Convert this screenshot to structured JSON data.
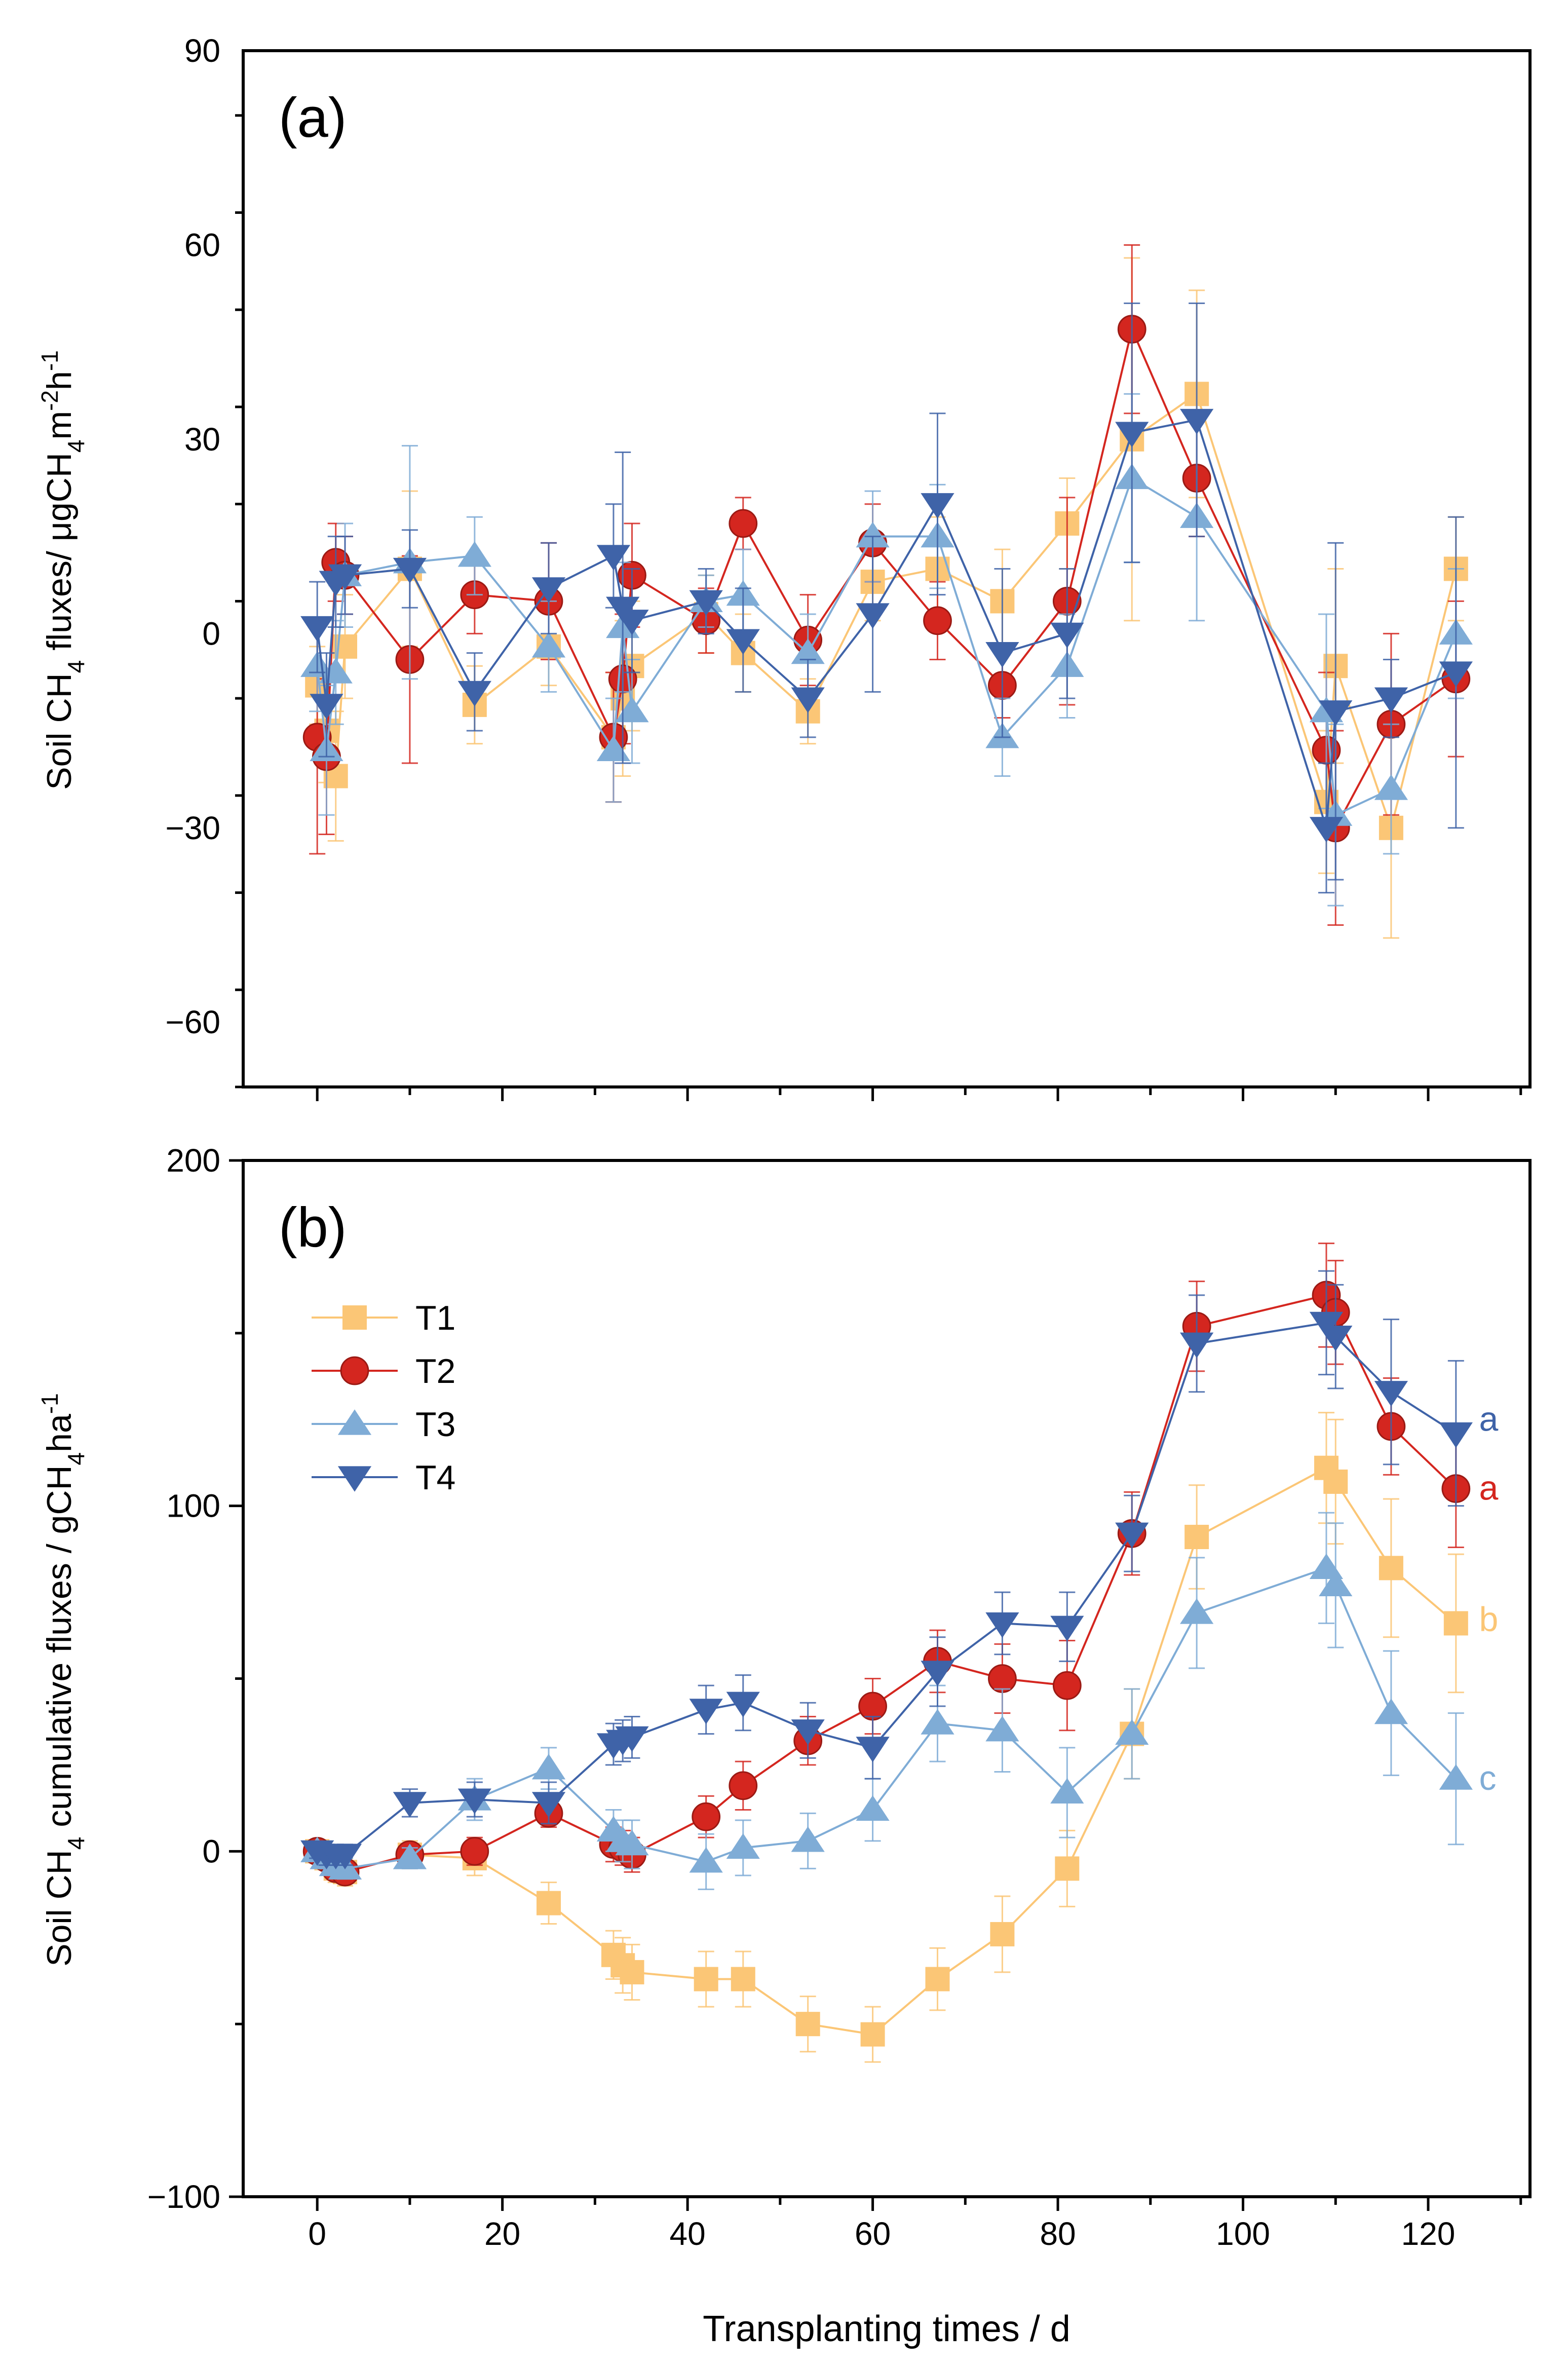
{
  "x_axis": {
    "label": "Transplanting times / d",
    "ticks": [
      "0",
      "20",
      "40",
      "60",
      "80",
      "100",
      "120"
    ]
  },
  "legend": [
    {
      "name": "T1",
      "color": "#FBC676",
      "marker": "square"
    },
    {
      "name": "T2",
      "color": "#D4261F",
      "marker": "circle"
    },
    {
      "name": "T3",
      "color": "#7FACD6",
      "marker": "triangle-up"
    },
    {
      "name": "T4",
      "color": "#3F63A8",
      "marker": "triangle-down"
    }
  ],
  "chart_data": [
    {
      "type": "line",
      "panel_label": "(a)",
      "title": "",
      "xlabel": "Transplanting times / d",
      "ylabel": {
        "main": "Soil CH",
        "sub1": "4",
        "mid": " fluxes/ μgCH",
        "sub2": "4",
        "m": "m",
        "sup1": "-2",
        "h": "h",
        "sup2": "-1"
      },
      "xlim": [
        -8,
        131
      ],
      "ylim": [
        -70,
        90
      ],
      "yticks": [
        -60,
        -30,
        0,
        30,
        60,
        90
      ],
      "ytick_labels": [
        "−60",
        "−30",
        "0",
        "30",
        "60",
        "90"
      ],
      "x": [
        0,
        1,
        2,
        3,
        10,
        17,
        25,
        32,
        33,
        34,
        42,
        46,
        53,
        60,
        67,
        74,
        81,
        88,
        95,
        109,
        110,
        116,
        123
      ],
      "series": [
        {
          "name": "T1",
          "values": [
            -8,
            -15,
            -22,
            -2,
            10,
            -11,
            -2,
            -16,
            -10,
            -5,
            3,
            -3,
            -12,
            8,
            10,
            5,
            17,
            30,
            37,
            -26,
            -5,
            -30,
            10
          ],
          "errors": [
            6,
            8,
            10,
            8,
            12,
            6,
            6,
            10,
            12,
            10,
            6,
            6,
            5,
            6,
            8,
            8,
            7,
            28,
            16,
            11,
            15,
            17,
            8
          ]
        },
        {
          "name": "T2",
          "values": [
            -16,
            -19,
            11,
            9,
            -4,
            6,
            5,
            -16,
            -7,
            9,
            2,
            17,
            -1,
            14,
            2,
            -8,
            5,
            47,
            24,
            -18,
            -30,
            -14,
            -7
          ],
          "errors": [
            18,
            12,
            6,
            6,
            16,
            6,
            9,
            10,
            10,
            8,
            5,
            4,
            7,
            6,
            6,
            5,
            16,
            13,
            9,
            12,
            15,
            14,
            12
          ]
        },
        {
          "name": "T3",
          "values": [
            -5,
            -18,
            -6,
            9,
            11,
            12,
            -2,
            -18,
            1,
            -12,
            5,
            6,
            -3,
            15,
            15,
            -16,
            -5,
            24,
            18,
            -12,
            -28,
            -24,
            0
          ],
          "errors": [
            7,
            10,
            8,
            8,
            18,
            6,
            7,
            8,
            10,
            8,
            4,
            7,
            6,
            7,
            8,
            6,
            8,
            13,
            16,
            15,
            14,
            10,
            10
          ]
        },
        {
          "name": "T4",
          "values": [
            1,
            -11,
            8,
            9,
            10,
            -9,
            7,
            12,
            4,
            2,
            5,
            -1,
            -10,
            3,
            20,
            -3,
            0,
            31,
            33,
            -30,
            -12,
            -10,
            -6
          ],
          "errors": [
            7,
            8,
            7,
            6,
            6,
            6,
            7,
            8,
            24,
            8,
            5,
            8,
            6,
            12,
            14,
            13,
            10,
            20,
            18,
            10,
            26,
            6,
            24
          ]
        }
      ]
    },
    {
      "type": "line",
      "panel_label": "(b)",
      "title": "",
      "xlabel": "Transplanting times / d",
      "ylabel": {
        "main": "Soil CH",
        "sub1": "4",
        "mid": " cumulative fluxes / gCH",
        "sub2": "4",
        "h": "ha",
        "sup": "-1"
      },
      "xlim": [
        -8,
        131
      ],
      "ylim": [
        -100,
        200
      ],
      "yticks": [
        -100,
        0,
        100,
        200
      ],
      "ytick_labels": [
        "−100",
        "0",
        "100",
        "200"
      ],
      "x": [
        0,
        1,
        2,
        3,
        10,
        17,
        25,
        32,
        33,
        34,
        42,
        46,
        53,
        60,
        67,
        74,
        81,
        88,
        95,
        109,
        110,
        116,
        123
      ],
      "series": [
        {
          "name": "T1",
          "values": [
            0,
            -2,
            -5,
            -6,
            -1,
            -2,
            -15,
            -30,
            -33,
            -35,
            -37,
            -37,
            -50,
            -53,
            -37,
            -24,
            -5,
            34,
            91,
            111,
            107,
            82,
            66
          ],
          "errors": [
            2,
            3,
            4,
            4,
            4,
            5,
            6,
            7,
            8,
            8,
            8,
            8,
            8,
            8,
            9,
            11,
            11,
            13,
            15,
            16,
            18,
            20,
            20
          ]
        },
        {
          "name": "T2",
          "values": [
            0,
            -2,
            -5,
            -6,
            -1,
            0,
            11,
            2,
            1,
            -1,
            10,
            19,
            32,
            42,
            55,
            50,
            48,
            92,
            152,
            161,
            156,
            123,
            105
          ],
          "errors": [
            2,
            3,
            3,
            3,
            3,
            4,
            4,
            5,
            5,
            5,
            6,
            7,
            7,
            8,
            9,
            10,
            13,
            12,
            13,
            15,
            15,
            14,
            17
          ]
        },
        {
          "name": "T3",
          "values": [
            0,
            -2,
            -4,
            -5,
            -2,
            15,
            24,
            6,
            3,
            2,
            -3,
            1,
            3,
            12,
            37,
            35,
            17,
            34,
            69,
            82,
            77,
            40,
            21
          ],
          "errors": [
            2,
            3,
            3,
            3,
            3,
            6,
            6,
            6,
            6,
            7,
            8,
            8,
            8,
            9,
            11,
            12,
            13,
            13,
            16,
            16,
            18,
            18,
            19
          ]
        },
        {
          "name": "T4",
          "values": [
            0,
            -1,
            -1,
            -1,
            14,
            15,
            14,
            31,
            32,
            33,
            41,
            43,
            35,
            30,
            52,
            66,
            65,
            92,
            147,
            153,
            149,
            133,
            121
          ],
          "errors": [
            2,
            3,
            3,
            3,
            4,
            5,
            6,
            6,
            6,
            6,
            7,
            8,
            8,
            9,
            10,
            9,
            10,
            11,
            14,
            15,
            15,
            21,
            21
          ]
        }
      ],
      "significance_letters": [
        {
          "series": "T4",
          "letter": "a",
          "y": 125
        },
        {
          "series": "T2",
          "letter": "a",
          "y": 105
        },
        {
          "series": "T1",
          "letter": "b",
          "y": 67
        },
        {
          "series": "T3",
          "letter": "c",
          "y": 21
        }
      ]
    }
  ]
}
